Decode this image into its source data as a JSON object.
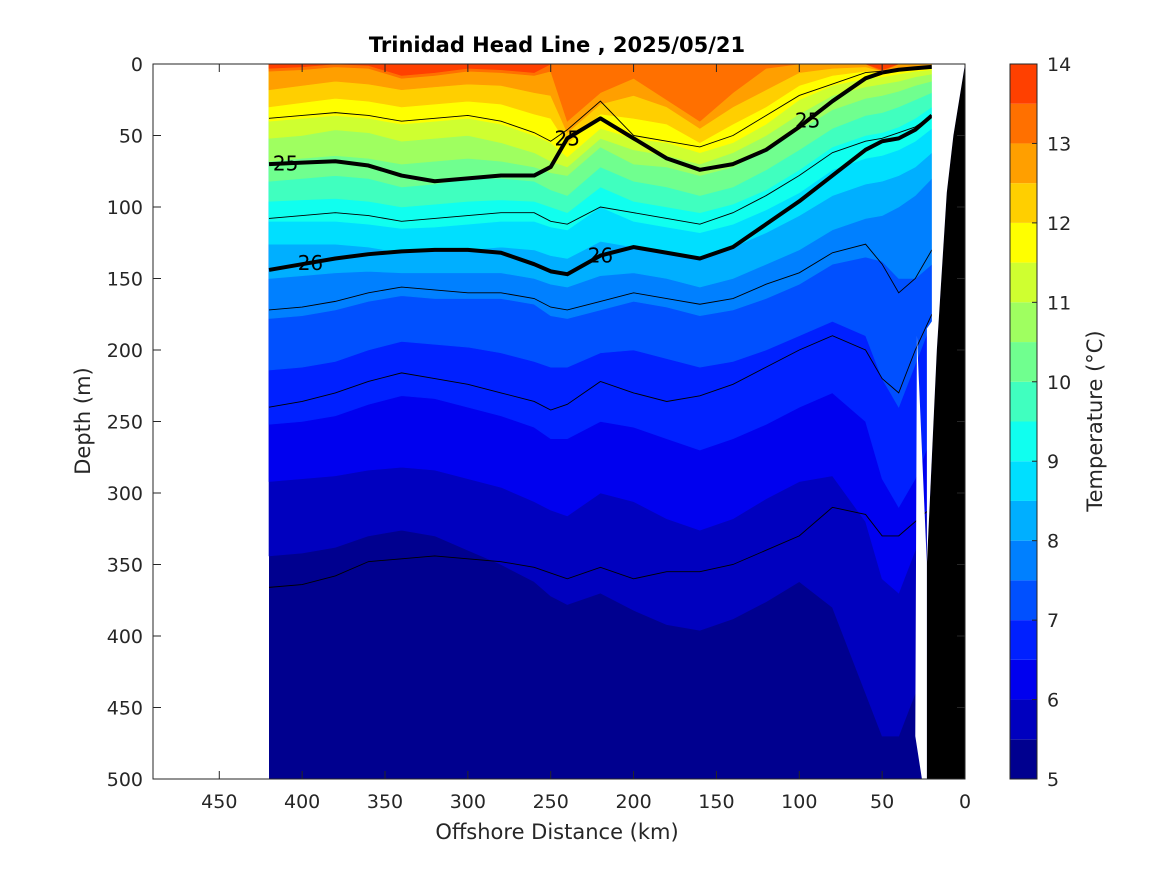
{
  "chart_data": {
    "type": "heatmap",
    "title": "Trinidad Head Line , 2025/05/21",
    "xlabel": "Offshore Distance (km)",
    "ylabel": "Depth (m)",
    "xlim": [
      490,
      0
    ],
    "ylim": [
      500,
      0
    ],
    "x_ticks": [
      450,
      400,
      350,
      300,
      250,
      200,
      150,
      100,
      50,
      0
    ],
    "y_ticks": [
      0,
      50,
      100,
      150,
      200,
      250,
      300,
      350,
      400,
      450,
      500
    ],
    "colorbar": {
      "label": "Temperature (°C)",
      "range": [
        5,
        14
      ],
      "ticks": [
        5,
        6,
        7,
        8,
        9,
        10,
        11,
        12,
        13,
        14
      ],
      "level_step": 0.5,
      "colors": [
        "#00008f",
        "#0000bf",
        "#0000ef",
        "#0020ff",
        "#0050ff",
        "#0080ff",
        "#00afff",
        "#00dfff",
        "#10ffef",
        "#40ffbf",
        "#70ff8f",
        "#9fff60",
        "#cfff30",
        "#ffff00",
        "#ffcf00",
        "#ff9f00",
        "#ff7000",
        "#ff4000"
      ]
    },
    "data_extent_x": [
      0,
      420
    ],
    "profiles": {
      "x": [
        420,
        400,
        380,
        360,
        340,
        320,
        300,
        280,
        260,
        250,
        240,
        220,
        200,
        180,
        160,
        140,
        120,
        100,
        80,
        60,
        50,
        40,
        30,
        20
      ],
      "isotherms": [
        {
          "temp": 13.5,
          "depth": [
            3,
            2,
            0,
            1,
            8,
            6,
            3,
            4,
            6,
            0,
            0,
            0,
            0,
            0,
            0,
            0,
            0,
            0,
            0,
            0,
            4,
            0,
            0,
            0
          ]
        },
        {
          "temp": 13.0,
          "depth": [
            5,
            4,
            2,
            3,
            10,
            8,
            5,
            6,
            8,
            5,
            40,
            20,
            10,
            25,
            40,
            20,
            3,
            0,
            0,
            0,
            5,
            0,
            0,
            0
          ]
        },
        {
          "temp": 12.5,
          "depth": [
            18,
            15,
            12,
            14,
            18,
            16,
            14,
            15,
            20,
            22,
            48,
            28,
            22,
            30,
            45,
            30,
            18,
            6,
            3,
            2,
            5,
            3,
            2,
            1
          ]
        },
        {
          "temp": 12.0,
          "depth": [
            30,
            27,
            24,
            26,
            30,
            28,
            26,
            28,
            35,
            38,
            56,
            35,
            38,
            42,
            55,
            42,
            30,
            15,
            8,
            5,
            6,
            4,
            3,
            2
          ]
        },
        {
          "temp": 11.5,
          "depth": [
            40,
            38,
            36,
            38,
            42,
            40,
            38,
            42,
            50,
            55,
            65,
            45,
            52,
            55,
            62,
            55,
            42,
            25,
            15,
            10,
            9,
            7,
            5,
            4
          ]
        },
        {
          "temp": 11.0,
          "depth": [
            52,
            50,
            46,
            48,
            54,
            52,
            50,
            55,
            62,
            68,
            72,
            52,
            60,
            64,
            70,
            62,
            50,
            35,
            22,
            16,
            14,
            12,
            9,
            7
          ]
        },
        {
          "temp": 10.5,
          "depth": [
            68,
            66,
            64,
            66,
            70,
            68,
            66,
            68,
            72,
            76,
            78,
            58,
            70,
            72,
            78,
            72,
            60,
            46,
            32,
            24,
            22,
            19,
            15,
            12
          ]
        },
        {
          "temp": 10.0,
          "depth": [
            82,
            80,
            78,
            80,
            86,
            84,
            80,
            80,
            82,
            88,
            92,
            72,
            82,
            86,
            92,
            86,
            74,
            60,
            45,
            36,
            34,
            30,
            25,
            20
          ]
        },
        {
          "temp": 9.5,
          "depth": [
            96,
            95,
            94,
            96,
            100,
            98,
            96,
            95,
            96,
            100,
            104,
            86,
            96,
            100,
            104,
            98,
            88,
            74,
            58,
            50,
            48,
            44,
            38,
            30
          ]
        },
        {
          "temp": 9.0,
          "depth": [
            110,
            110,
            110,
            112,
            115,
            114,
            112,
            110,
            110,
            114,
            116,
            100,
            110,
            114,
            118,
            112,
            102,
            90,
            74,
            66,
            64,
            60,
            54,
            45
          ]
        },
        {
          "temp": 8.5,
          "depth": [
            126,
            126,
            126,
            128,
            132,
            130,
            130,
            128,
            130,
            134,
            136,
            124,
            128,
            132,
            136,
            128,
            118,
            106,
            92,
            84,
            82,
            78,
            72,
            62
          ]
        },
        {
          "temp": 8.0,
          "depth": [
            150,
            148,
            146,
            145,
            146,
            146,
            146,
            146,
            150,
            154,
            156,
            148,
            146,
            150,
            156,
            150,
            140,
            130,
            116,
            108,
            106,
            100,
            92,
            80
          ]
        },
        {
          "temp": 7.5,
          "depth": [
            178,
            176,
            172,
            166,
            162,
            164,
            164,
            164,
            168,
            176,
            178,
            172,
            166,
            170,
            176,
            172,
            164,
            154,
            140,
            135,
            138,
            150,
            150,
            140
          ]
        },
        {
          "temp": 7.0,
          "depth": [
            214,
            212,
            208,
            200,
            194,
            196,
            198,
            202,
            208,
            212,
            212,
            202,
            200,
            206,
            212,
            208,
            200,
            190,
            180,
            190,
            220,
            240,
            210,
            180
          ]
        },
        {
          "temp": 6.5,
          "depth": [
            252,
            250,
            246,
            238,
            232,
            234,
            240,
            246,
            254,
            262,
            262,
            250,
            254,
            262,
            270,
            262,
            252,
            240,
            230,
            250,
            290,
            310,
            290,
            260
          ]
        },
        {
          "temp": 6.0,
          "depth": [
            292,
            290,
            288,
            284,
            282,
            284,
            290,
            296,
            306,
            312,
            316,
            300,
            306,
            318,
            326,
            318,
            304,
            292,
            288,
            320,
            360,
            370,
            340,
            300
          ]
        },
        {
          "temp": 5.5,
          "depth": [
            344,
            342,
            338,
            330,
            326,
            330,
            340,
            350,
            362,
            372,
            378,
            370,
            382,
            392,
            396,
            388,
            376,
            362,
            380,
            440,
            470,
            470,
            440,
            400
          ]
        }
      ],
      "bold_contours": [
        {
          "label": "25",
          "depth": [
            70,
            69,
            68,
            71,
            78,
            82,
            80,
            78,
            78,
            72,
            52,
            38,
            52,
            66,
            74,
            70,
            60,
            44,
            26,
            10,
            6,
            4,
            3,
            2
          ]
        },
        {
          "label": "26",
          "depth": [
            144,
            140,
            136,
            133,
            131,
            130,
            130,
            132,
            140,
            145,
            147,
            134,
            128,
            132,
            136,
            128,
            112,
            96,
            78,
            60,
            54,
            52,
            46,
            36
          ]
        }
      ],
      "thin_contours": [
        {
          "depth": [
            38,
            36,
            34,
            36,
            40,
            38,
            36,
            40,
            48,
            54,
            46,
            26,
            50,
            54,
            58,
            50,
            36,
            22,
            14,
            6,
            5,
            4,
            3,
            2
          ]
        },
        {
          "depth": [
            108,
            106,
            104,
            106,
            110,
            108,
            106,
            104,
            104,
            110,
            112,
            100,
            104,
            108,
            112,
            104,
            92,
            78,
            62,
            54,
            52,
            48,
            44,
            36
          ]
        },
        {
          "depth": [
            172,
            170,
            166,
            160,
            156,
            158,
            160,
            160,
            164,
            170,
            172,
            166,
            160,
            164,
            168,
            164,
            154,
            146,
            132,
            126,
            140,
            160,
            150,
            130
          ]
        },
        {
          "depth": [
            240,
            236,
            230,
            222,
            216,
            220,
            224,
            230,
            236,
            242,
            238,
            222,
            230,
            236,
            232,
            224,
            212,
            200,
            190,
            200,
            220,
            230,
            200,
            175
          ]
        },
        {
          "depth": [
            366,
            364,
            358,
            348,
            346,
            344,
            346,
            348,
            352,
            356,
            360,
            352,
            360,
            355,
            355,
            350,
            340,
            330,
            310,
            315,
            330,
            330,
            320,
            310
          ]
        }
      ]
    },
    "bottom_profile": {
      "x": [
        0,
        7,
        11,
        17,
        23,
        23,
        26,
        30
      ],
      "depth": [
        0,
        50,
        90,
        200,
        350,
        500,
        500,
        470
      ]
    }
  }
}
